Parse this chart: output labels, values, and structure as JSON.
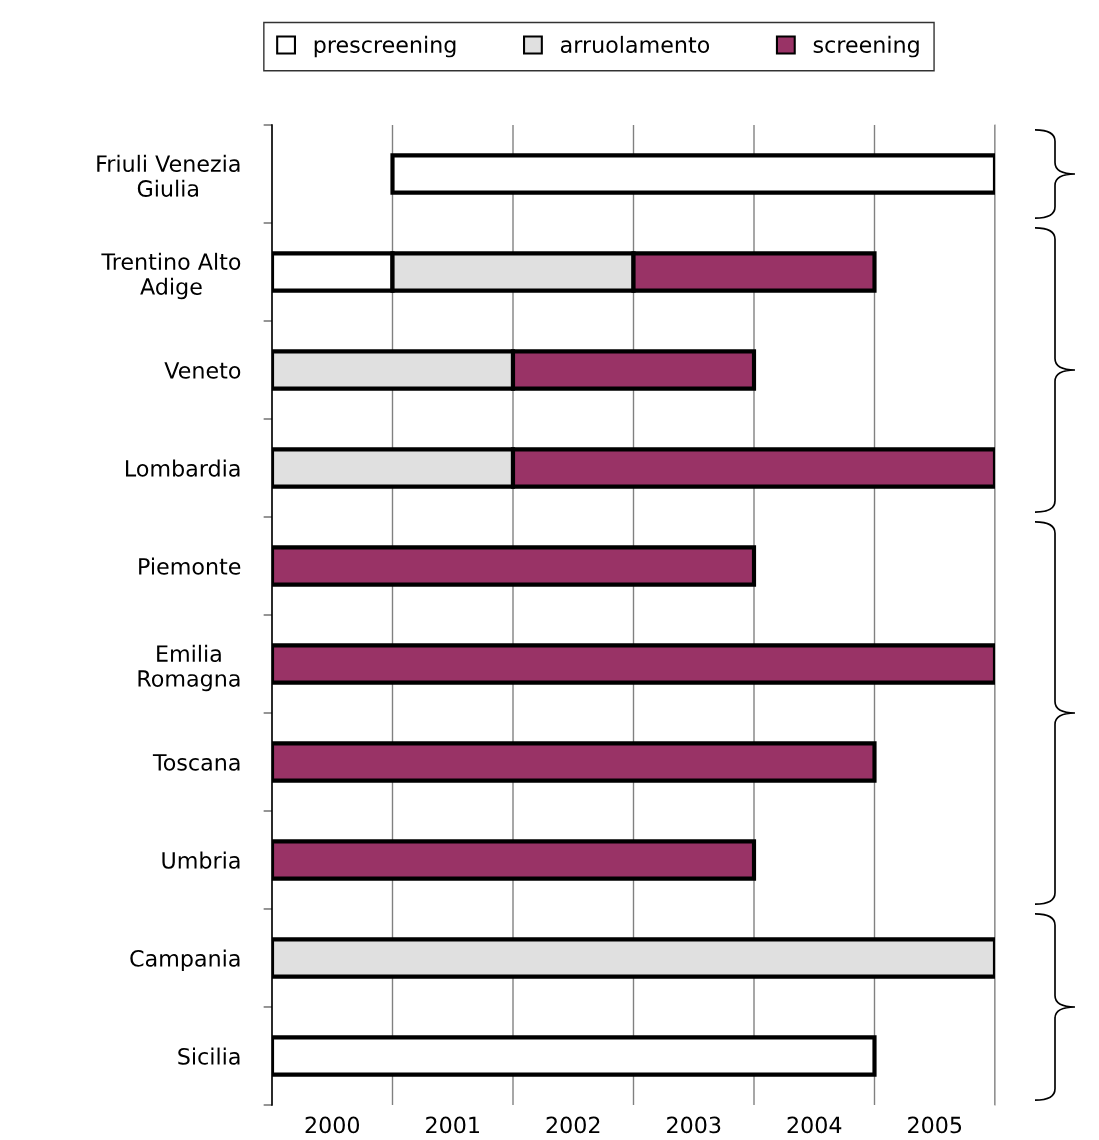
{
  "chart_data": {
    "type": "bar",
    "orientation": "horizontal",
    "categories": [
      "Friuli Venezia\nGiulia",
      "Trentino Alto\nAdige",
      "Veneto",
      "Lombardia",
      "Piemonte",
      "Emilia\nRomagna",
      "Toscana",
      "Umbria",
      "Campania",
      "Sicilia"
    ],
    "series": [
      {
        "name": "prescreening",
        "color": "#ffffff",
        "base": [
          2001,
          2000,
          null,
          null,
          null,
          null,
          null,
          null,
          null,
          2000
        ],
        "values": [
          5,
          1,
          null,
          null,
          null,
          null,
          null,
          null,
          null,
          5
        ]
      },
      {
        "name": "arruolamento",
        "color": "#e0e0e0",
        "base": [
          null,
          2001,
          2000,
          2000,
          null,
          null,
          null,
          null,
          2000,
          null
        ],
        "values": [
          null,
          2,
          2,
          2,
          null,
          null,
          null,
          null,
          6,
          null
        ]
      },
      {
        "name": "screening",
        "color": "#993366",
        "base": [
          null,
          2003,
          2002,
          2002,
          2000,
          2000,
          2000,
          2000,
          null,
          null
        ],
        "values": [
          null,
          2,
          2,
          4,
          4,
          6,
          5,
          4,
          null,
          null
        ]
      }
    ],
    "xlim": [
      2000,
      2006
    ],
    "xticks": [
      {
        "value": 2001,
        "label": null
      },
      {
        "value": 2002,
        "label": null
      },
      {
        "value": 2003,
        "label": null
      },
      {
        "value": 2004,
        "label": null
      },
      {
        "value": 2005,
        "label": null
      },
      {
        "value": 2006,
        "label": null
      },
      {
        "value": 2000.5,
        "label": "2000"
      },
      {
        "value": 2001.5,
        "label": "2001"
      },
      {
        "value": 2002.5,
        "label": "2002"
      },
      {
        "value": 2003.5,
        "label": "2003"
      },
      {
        "value": 2004.5,
        "label": "2004"
      },
      {
        "value": 2005.5,
        "label": "2005"
      }
    ],
    "grid": "x",
    "legend": "top"
  }
}
